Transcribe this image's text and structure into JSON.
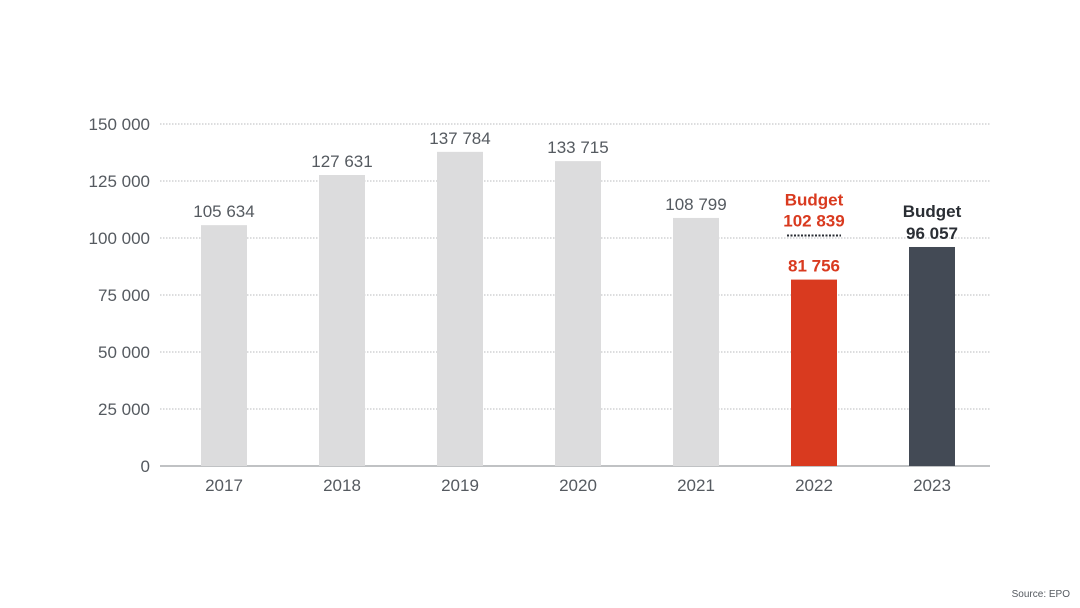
{
  "chart_data": {
    "type": "bar",
    "categories": [
      "2017",
      "2018",
      "2019",
      "2020",
      "2021",
      "2022",
      "2023"
    ],
    "values": [
      105634,
      127631,
      137784,
      133715,
      108799,
      81756,
      96057
    ],
    "value_labels": [
      "105 634",
      "127 631",
      "137 784",
      "133 715",
      "108 799",
      "81 756",
      "96 057"
    ],
    "bar_colors": [
      "#dcdcdd",
      "#dcdcdd",
      "#dcdcdd",
      "#dcdcdd",
      "#dcdcdd",
      "#d93a1f",
      "#434a55"
    ],
    "label_colors": [
      "#555a60",
      "#555a60",
      "#555a60",
      "#555a60",
      "#555a60",
      "#d93a1f",
      "#2a2e34"
    ],
    "budget_2022": {
      "label": "Budget",
      "value": 102839,
      "value_label": "102 839",
      "color": "#d93a1f",
      "marker": "dotted-line"
    },
    "budget_2023": {
      "label": "Budget",
      "value_label": "96 057",
      "color": "#2a2e34"
    },
    "ylim": [
      0,
      150000
    ],
    "yticks": [
      0,
      25000,
      50000,
      75000,
      100000,
      125000,
      150000
    ],
    "ytick_labels": [
      "0",
      "25 000",
      "50 000",
      "75 000",
      "100 000",
      "125 000",
      "150 000"
    ],
    "grid": true,
    "grid_style": "dotted",
    "title": "",
    "xlabel": "",
    "ylabel": ""
  },
  "source": "Source: EPO"
}
